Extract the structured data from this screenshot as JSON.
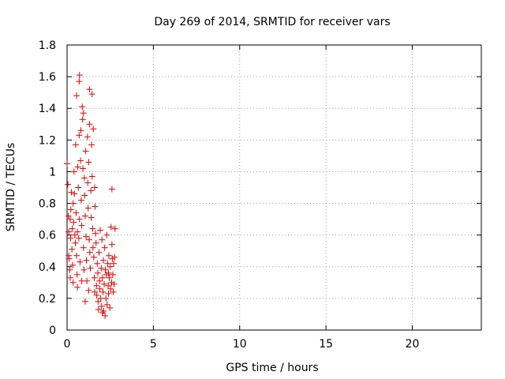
{
  "chart_data": {
    "type": "scatter",
    "title": "Day 269 of 2014, SRMTID for receiver vars",
    "xlabel": "GPS time / hours",
    "ylabel": "SRMTID / TECUs",
    "xlim": [
      0,
      24
    ],
    "ylim": [
      0,
      1.8
    ],
    "grid": true,
    "x_ticks": [
      0,
      5,
      10,
      15,
      20
    ],
    "y_ticks": [
      0,
      0.2,
      0.4,
      0.6,
      0.8,
      1,
      1.2,
      1.4,
      1.6,
      1.8
    ],
    "x_tick_labels": [
      "0",
      "5",
      "10",
      "15",
      "20"
    ],
    "y_tick_labels": [
      "0",
      "0.2",
      "0.4",
      "0.6",
      "0.8",
      "1",
      "1.2",
      "1.4",
      "1.6",
      "1.8"
    ],
    "marker": "+",
    "color": "#e00000",
    "series": [
      {
        "name": "SRMTID",
        "points": [
          [
            0.0,
            1.05
          ],
          [
            0.05,
            0.92
          ],
          [
            0.08,
            0.72
          ],
          [
            0.1,
            0.62
          ],
          [
            0.12,
            0.45
          ],
          [
            0.15,
            0.38
          ],
          [
            0.18,
            0.33
          ],
          [
            0.2,
            0.58
          ],
          [
            0.22,
            0.76
          ],
          [
            0.25,
            0.87
          ],
          [
            0.28,
            0.51
          ],
          [
            0.3,
            0.64
          ],
          [
            0.32,
            0.41
          ],
          [
            0.35,
            0.3
          ],
          [
            0.38,
            0.68
          ],
          [
            0.4,
            1.0
          ],
          [
            0.42,
            0.86
          ],
          [
            0.45,
            0.6
          ],
          [
            0.48,
            0.55
          ],
          [
            0.5,
            1.17
          ],
          [
            0.52,
            0.74
          ],
          [
            0.55,
            0.47
          ],
          [
            0.58,
            0.35
          ],
          [
            0.6,
            0.62
          ],
          [
            0.62,
            1.03
          ],
          [
            0.65,
            0.9
          ],
          [
            0.68,
            0.58
          ],
          [
            0.7,
            1.23
          ],
          [
            0.72,
            0.7
          ],
          [
            0.75,
            0.43
          ],
          [
            0.78,
            1.07
          ],
          [
            0.8,
            1.26
          ],
          [
            0.82,
            0.82
          ],
          [
            0.85,
            0.66
          ],
          [
            0.88,
            1.41
          ],
          [
            0.9,
            1.33
          ],
          [
            0.92,
            1.02
          ],
          [
            0.95,
            0.52
          ],
          [
            0.98,
            0.38
          ],
          [
            1.0,
            0.96
          ],
          [
            1.02,
            0.85
          ],
          [
            1.05,
            0.72
          ],
          [
            1.08,
            1.13
          ],
          [
            1.1,
            0.59
          ],
          [
            1.12,
            0.44
          ],
          [
            1.15,
            0.31
          ],
          [
            1.18,
            1.22
          ],
          [
            1.2,
            0.93
          ],
          [
            1.22,
            0.77
          ],
          [
            1.25,
            1.06
          ],
          [
            1.28,
            0.57
          ],
          [
            1.3,
            1.3
          ],
          [
            1.32,
            0.49
          ],
          [
            1.35,
            0.39
          ],
          [
            1.38,
            0.88
          ],
          [
            1.4,
            0.71
          ],
          [
            1.42,
            1.17
          ],
          [
            1.45,
            0.97
          ],
          [
            1.48,
            0.64
          ],
          [
            1.5,
            0.52
          ],
          [
            1.52,
            1.27
          ],
          [
            1.55,
            0.46
          ],
          [
            1.58,
            0.33
          ],
          [
            1.6,
            0.9
          ],
          [
            1.62,
            0.78
          ],
          [
            1.65,
            0.61
          ],
          [
            1.68,
            0.55
          ],
          [
            1.7,
            0.28
          ],
          [
            1.72,
            0.22
          ],
          [
            1.75,
            0.42
          ],
          [
            1.78,
            0.36
          ],
          [
            1.8,
            0.18
          ],
          [
            1.82,
            0.13
          ],
          [
            1.85,
            0.49
          ],
          [
            1.88,
            0.31
          ],
          [
            1.9,
            0.26
          ],
          [
            1.92,
            0.63
          ],
          [
            1.95,
            0.2
          ],
          [
            1.98,
            0.39
          ],
          [
            2.0,
            0.15
          ],
          [
            2.02,
            0.57
          ],
          [
            2.05,
            0.33
          ],
          [
            2.08,
            0.24
          ],
          [
            2.1,
            0.44
          ],
          [
            2.12,
            0.12
          ],
          [
            2.15,
            0.29
          ],
          [
            2.18,
            0.52
          ],
          [
            2.2,
            0.09
          ],
          [
            2.22,
            0.38
          ],
          [
            2.25,
            0.2
          ],
          [
            2.28,
            0.35
          ],
          [
            2.3,
            0.6
          ],
          [
            2.32,
            0.16
          ],
          [
            2.35,
            0.42
          ],
          [
            2.38,
            0.28
          ],
          [
            2.4,
            0.23
          ],
          [
            2.42,
            0.47
          ],
          [
            2.45,
            0.33
          ],
          [
            2.48,
            0.14
          ],
          [
            2.5,
            0.4
          ],
          [
            2.52,
            0.26
          ],
          [
            2.55,
            0.65
          ],
          [
            2.58,
            0.3
          ],
          [
            2.6,
            0.89
          ],
          [
            2.62,
            0.45
          ],
          [
            2.65,
            0.35
          ],
          [
            2.68,
            0.24
          ],
          [
            2.7,
            0.42
          ],
          [
            2.72,
            0.29
          ],
          [
            2.75,
            0.46
          ],
          [
            2.78,
            0.64
          ],
          [
            0.55,
            1.48
          ],
          [
            0.7,
            1.57
          ],
          [
            0.72,
            1.61
          ],
          [
            1.3,
            1.52
          ],
          [
            1.45,
            1.49
          ],
          [
            0.95,
            1.37
          ],
          [
            0.18,
            0.7
          ],
          [
            0.1,
            0.47
          ],
          [
            0.35,
            0.8
          ],
          [
            0.6,
            0.27
          ],
          [
            1.05,
            0.18
          ],
          [
            1.25,
            0.25
          ],
          [
            0.85,
            0.31
          ],
          [
            1.6,
            0.24
          ],
          [
            2.05,
            0.11
          ],
          [
            2.4,
            0.36
          ],
          [
            2.6,
            0.54
          ]
        ]
      }
    ]
  }
}
